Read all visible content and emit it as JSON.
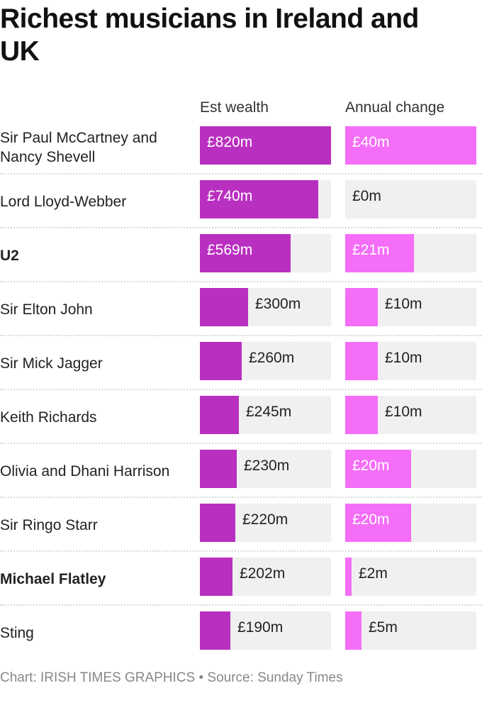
{
  "title": "Richest musicians in Ireland and UK",
  "columns": {
    "wealth": "Est wealth",
    "change": "Annual change"
  },
  "colors": {
    "wealth": "#b92fc0",
    "change": "#f46ef7",
    "track": "#f0f0f0"
  },
  "rows": [
    {
      "name": "Sir Paul McCartney and Nancy Shevell",
      "bold": false,
      "wealth": 820,
      "wealth_label": "£820m",
      "change": 40,
      "change_label": "£40m"
    },
    {
      "name": "Lord Lloyd-Webber",
      "bold": false,
      "wealth": 740,
      "wealth_label": "£740m",
      "change": 0,
      "change_label": "£0m"
    },
    {
      "name": "U2",
      "bold": true,
      "wealth": 569,
      "wealth_label": "£569m",
      "change": 21,
      "change_label": "£21m"
    },
    {
      "name": "Sir Elton John",
      "bold": false,
      "wealth": 300,
      "wealth_label": "£300m",
      "change": 10,
      "change_label": "£10m"
    },
    {
      "name": "Sir Mick Jagger",
      "bold": false,
      "wealth": 260,
      "wealth_label": "£260m",
      "change": 10,
      "change_label": "£10m"
    },
    {
      "name": "Keith Richards",
      "bold": false,
      "wealth": 245,
      "wealth_label": "£245m",
      "change": 10,
      "change_label": "£10m"
    },
    {
      "name": "Olivia and Dhani Harrison",
      "bold": false,
      "wealth": 230,
      "wealth_label": "£230m",
      "change": 20,
      "change_label": "£20m"
    },
    {
      "name": "Sir Ringo Starr",
      "bold": false,
      "wealth": 220,
      "wealth_label": "£220m",
      "change": 20,
      "change_label": "£20m"
    },
    {
      "name": "Michael Flatley",
      "bold": true,
      "wealth": 202,
      "wealth_label": "£202m",
      "change": 2,
      "change_label": "£2m"
    },
    {
      "name": "Sting",
      "bold": false,
      "wealth": 190,
      "wealth_label": "£190m",
      "change": 5,
      "change_label": "£5m"
    }
  ],
  "footer": "Chart: IRISH TIMES GRAPHICS • Source: Sunday Times",
  "chart_data": {
    "type": "bar",
    "orientation": "horizontal",
    "title": "Richest musicians in Ireland and UK",
    "categories": [
      "Sir Paul McCartney and Nancy Shevell",
      "Lord Lloyd-Webber",
      "U2",
      "Sir Elton John",
      "Sir Mick Jagger",
      "Keith Richards",
      "Olivia and Dhani Harrison",
      "Sir Ringo Starr",
      "Michael Flatley",
      "Sting"
    ],
    "series": [
      {
        "name": "Est wealth",
        "unit": "£m",
        "color": "#b92fc0",
        "values": [
          820,
          740,
          569,
          300,
          260,
          245,
          230,
          220,
          202,
          190
        ],
        "xlim": [
          0,
          820
        ]
      },
      {
        "name": "Annual change",
        "unit": "£m",
        "color": "#f46ef7",
        "values": [
          40,
          0,
          21,
          10,
          10,
          10,
          20,
          20,
          2,
          5
        ],
        "xlim": [
          0,
          40
        ]
      }
    ],
    "xlabel": "",
    "ylabel": "",
    "grid": false,
    "source": "Chart: IRISH TIMES GRAPHICS • Source: Sunday Times"
  }
}
